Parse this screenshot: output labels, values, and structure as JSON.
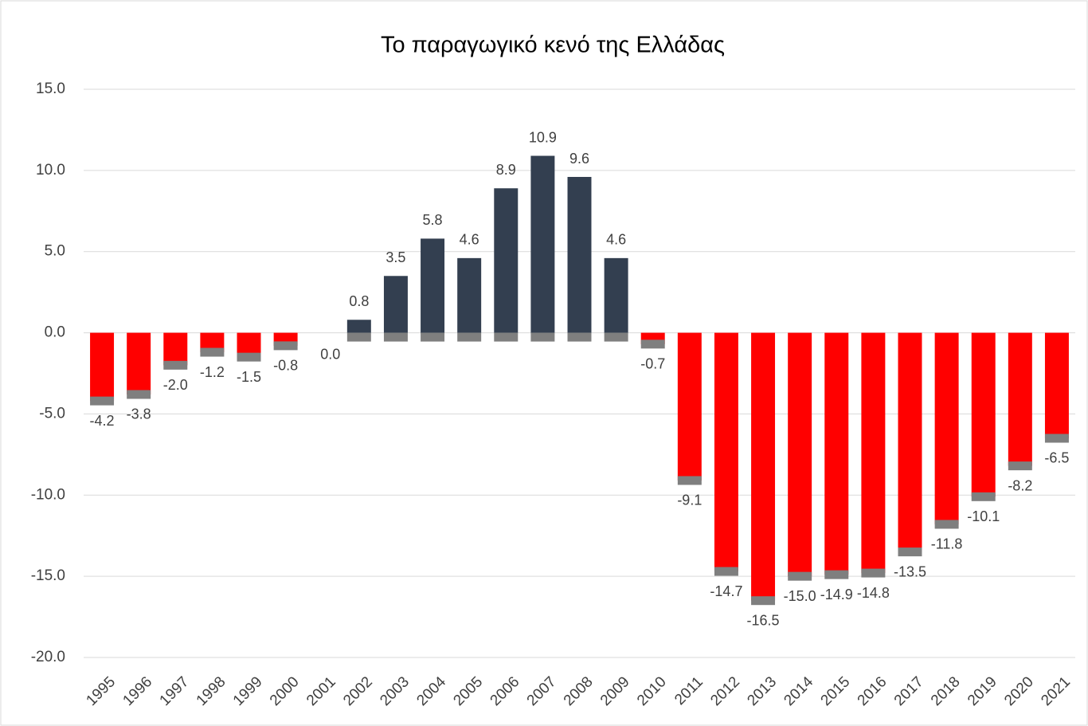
{
  "chart_data": {
    "type": "bar",
    "title": "Το παραγωγικό κενό της Ελλάδας",
    "categories": [
      "1995",
      "1996",
      "1997",
      "1998",
      "1999",
      "2000",
      "2001",
      "2002",
      "2003",
      "2004",
      "2005",
      "2006",
      "2007",
      "2008",
      "2009",
      "2010",
      "2011",
      "2012",
      "2013",
      "2014",
      "2015",
      "2016",
      "2017",
      "2018",
      "2019",
      "2020",
      "2021"
    ],
    "values": [
      -4.2,
      -3.8,
      -2.0,
      -1.2,
      -1.5,
      -0.8,
      0.0,
      0.8,
      3.5,
      5.8,
      4.6,
      8.9,
      10.9,
      9.6,
      4.6,
      -0.7,
      -9.1,
      -14.7,
      -16.5,
      -15.0,
      -14.9,
      -14.8,
      -13.5,
      -11.8,
      -10.1,
      -8.2,
      -6.5
    ],
    "value_labels": [
      "-4.2",
      "-3.8",
      "-2.0",
      "-1.2",
      "-1.5",
      "-0.8",
      "0.0",
      "0.8",
      "3.5",
      "5.8",
      "4.6",
      "8.9",
      "10.9",
      "9.6",
      "4.6",
      "-0.7",
      "-9.1",
      "-14.7",
      "-16.5",
      "-15.0",
      "-14.9",
      "-14.8",
      "-13.5",
      "-11.8",
      "-10.1",
      "-8.2",
      "-6.5"
    ],
    "positive_color": "#333f50",
    "negative_color": "#ff0000",
    "ylim": [
      -20,
      15
    ],
    "yticks": [
      {
        "value": -20,
        "label": "-20.0"
      },
      {
        "value": -15,
        "label": "-15.0"
      },
      {
        "value": -10,
        "label": "-10.0"
      },
      {
        "value": -5,
        "label": "-5.0"
      },
      {
        "value": 0,
        "label": "0.0"
      },
      {
        "value": 5,
        "label": "5.0"
      },
      {
        "value": 10,
        "label": "10.0"
      },
      {
        "value": 15,
        "label": "15.0"
      }
    ],
    "grid": true
  }
}
